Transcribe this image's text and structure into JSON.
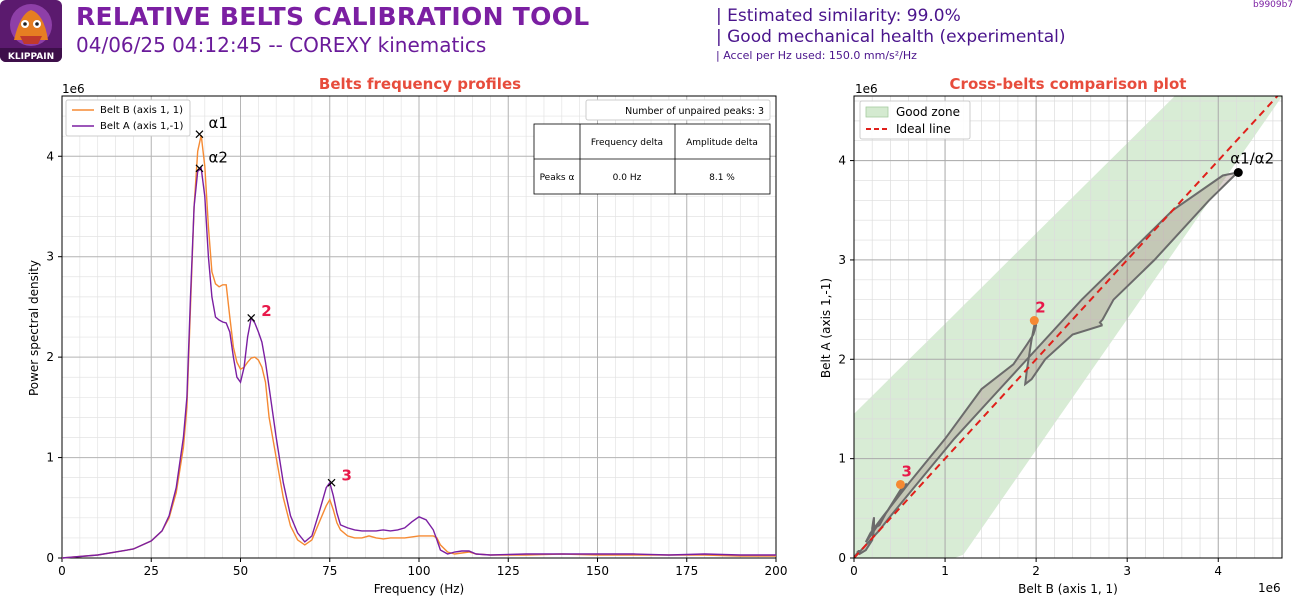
{
  "header": {
    "logo_text": "KLIPPAIN",
    "title": "RELATIVE BELTS CALIBRATION TOOL",
    "subtitle": "04/06/25 04:12:45 -- COREXY kinematics",
    "similarity": "| Estimated similarity: 99.0%",
    "health": "| Good mechanical health (experimental)",
    "accel": "| Accel per Hz used: 150.0 mm/s²/Hz",
    "version": "b9909b7"
  },
  "colors": {
    "belt_b": "#f58a33",
    "belt_a": "#7b1fa2",
    "title_red": "#e74c3c",
    "ideal": "#e0201b",
    "good_zone": "#d4ead0",
    "header_purple": "#7b1fa2"
  },
  "chart_data": [
    {
      "type": "line",
      "title": "Belts frequency profiles",
      "xlabel": "Frequency (Hz)",
      "ylabel": "Power spectral density",
      "y_scale_label": "1e6",
      "xlim": [
        0,
        200
      ],
      "ylim": [
        0,
        4.6
      ],
      "xticks": [
        "0",
        "25",
        "50",
        "75",
        "100",
        "125",
        "150",
        "175",
        "200"
      ],
      "yticks": [
        "0",
        "1",
        "2",
        "3",
        "4"
      ],
      "grid": true,
      "legend_position": "top-left",
      "series": [
        {
          "name": "Belt B (axis 1, 1)",
          "color": "#f58a33",
          "x": [
            0,
            10,
            20,
            25,
            28,
            30,
            32,
            34,
            35,
            36,
            37,
            38,
            39,
            40,
            41,
            42,
            43,
            44,
            45,
            46,
            47,
            48,
            49,
            50,
            51,
            52,
            53,
            54,
            55,
            56,
            57,
            58,
            60,
            62,
            64,
            66,
            68,
            70,
            72,
            74,
            75,
            76,
            77,
            78,
            80,
            82,
            84,
            86,
            88,
            90,
            92,
            94,
            96,
            98,
            100,
            102,
            104,
            105,
            106,
            108,
            110,
            112,
            114,
            116,
            120,
            130,
            140,
            150,
            160,
            170,
            180,
            190,
            200
          ],
          "y": [
            0,
            0.03,
            0.09,
            0.17,
            0.27,
            0.4,
            0.65,
            1.1,
            1.5,
            2.5,
            3.5,
            4.05,
            4.21,
            3.9,
            3.3,
            2.85,
            2.73,
            2.7,
            2.72,
            2.72,
            2.4,
            2.1,
            1.95,
            1.88,
            1.9,
            1.95,
            1.99,
            2.0,
            1.97,
            1.9,
            1.75,
            1.4,
            1.0,
            0.6,
            0.32,
            0.18,
            0.13,
            0.18,
            0.35,
            0.52,
            0.58,
            0.48,
            0.35,
            0.28,
            0.22,
            0.2,
            0.2,
            0.22,
            0.2,
            0.19,
            0.2,
            0.2,
            0.2,
            0.21,
            0.22,
            0.22,
            0.22,
            0.2,
            0.13,
            0.06,
            0.04,
            0.05,
            0.06,
            0.04,
            0.03,
            0.03,
            0.04,
            0.03,
            0.03,
            0.03,
            0.03,
            0.02,
            0.02
          ]
        },
        {
          "name": "Belt A (axis 1,-1)",
          "color": "#7b1fa2",
          "x": [
            0,
            10,
            20,
            25,
            28,
            30,
            32,
            34,
            35,
            36,
            37,
            38,
            39,
            40,
            41,
            42,
            43,
            44,
            45,
            46,
            47,
            48,
            49,
            50,
            51,
            52,
            53,
            54,
            55,
            56,
            57,
            58,
            60,
            62,
            64,
            66,
            68,
            70,
            72,
            74,
            75,
            76,
            77,
            78,
            80,
            82,
            84,
            86,
            88,
            90,
            92,
            94,
            96,
            98,
            100,
            102,
            104,
            105,
            106,
            108,
            110,
            112,
            114,
            116,
            120,
            130,
            140,
            150,
            160,
            170,
            180,
            190,
            200
          ],
          "y": [
            0,
            0.03,
            0.09,
            0.17,
            0.27,
            0.42,
            0.7,
            1.2,
            1.6,
            2.6,
            3.5,
            3.85,
            3.88,
            3.6,
            3.0,
            2.6,
            2.4,
            2.37,
            2.35,
            2.34,
            2.25,
            2.0,
            1.8,
            1.75,
            1.9,
            2.2,
            2.39,
            2.34,
            2.25,
            2.15,
            1.95,
            1.7,
            1.2,
            0.75,
            0.42,
            0.25,
            0.16,
            0.22,
            0.45,
            0.7,
            0.75,
            0.62,
            0.45,
            0.33,
            0.3,
            0.28,
            0.27,
            0.27,
            0.27,
            0.28,
            0.27,
            0.28,
            0.3,
            0.36,
            0.41,
            0.38,
            0.28,
            0.18,
            0.08,
            0.04,
            0.06,
            0.07,
            0.07,
            0.04,
            0.03,
            0.04,
            0.04,
            0.04,
            0.04,
            0.03,
            0.04,
            0.03,
            0.03
          ]
        }
      ],
      "peaks": [
        {
          "label": "α1",
          "x": 38.5,
          "y": 4.22,
          "style": "marker"
        },
        {
          "label": "α2",
          "x": 38.5,
          "y": 3.88,
          "style": "marker"
        },
        {
          "label": "2",
          "x": 53,
          "y": 2.39,
          "style": "unpaired"
        },
        {
          "label": "3",
          "x": 75.5,
          "y": 0.75,
          "style": "unpaired"
        }
      ],
      "info_box": "Number of unpaired peaks: 3",
      "table": {
        "headers": [
          "",
          "Frequency delta",
          "Amplitude delta"
        ],
        "rows": [
          [
            "Peaks α",
            "0.0 Hz",
            "8.1 %"
          ]
        ]
      }
    },
    {
      "type": "scatter",
      "title": "Cross-belts comparison plot",
      "xlabel": "Belt B (axis 1, 1)",
      "ylabel": "Belt A (axis 1,-1)",
      "x_scale_label": "1e6",
      "y_scale_label": "1e6",
      "xlim": [
        0,
        4.7
      ],
      "ylim": [
        0,
        4.65
      ],
      "xticks": [
        "0",
        "1",
        "2",
        "3",
        "4"
      ],
      "yticks": [
        "0",
        "1",
        "2",
        "3",
        "4"
      ],
      "grid": true,
      "legend_position": "top-left",
      "legend": [
        "Good zone",
        "Ideal line"
      ],
      "points": [
        {
          "label": "α1/α2",
          "x": 4.22,
          "y": 3.88,
          "color": "#000000"
        },
        {
          "label": "2",
          "x": 1.98,
          "y": 2.39,
          "color": "#f58a33"
        },
        {
          "label": "3",
          "x": 0.51,
          "y": 0.74,
          "color": "#f58a33"
        }
      ]
    }
  ]
}
